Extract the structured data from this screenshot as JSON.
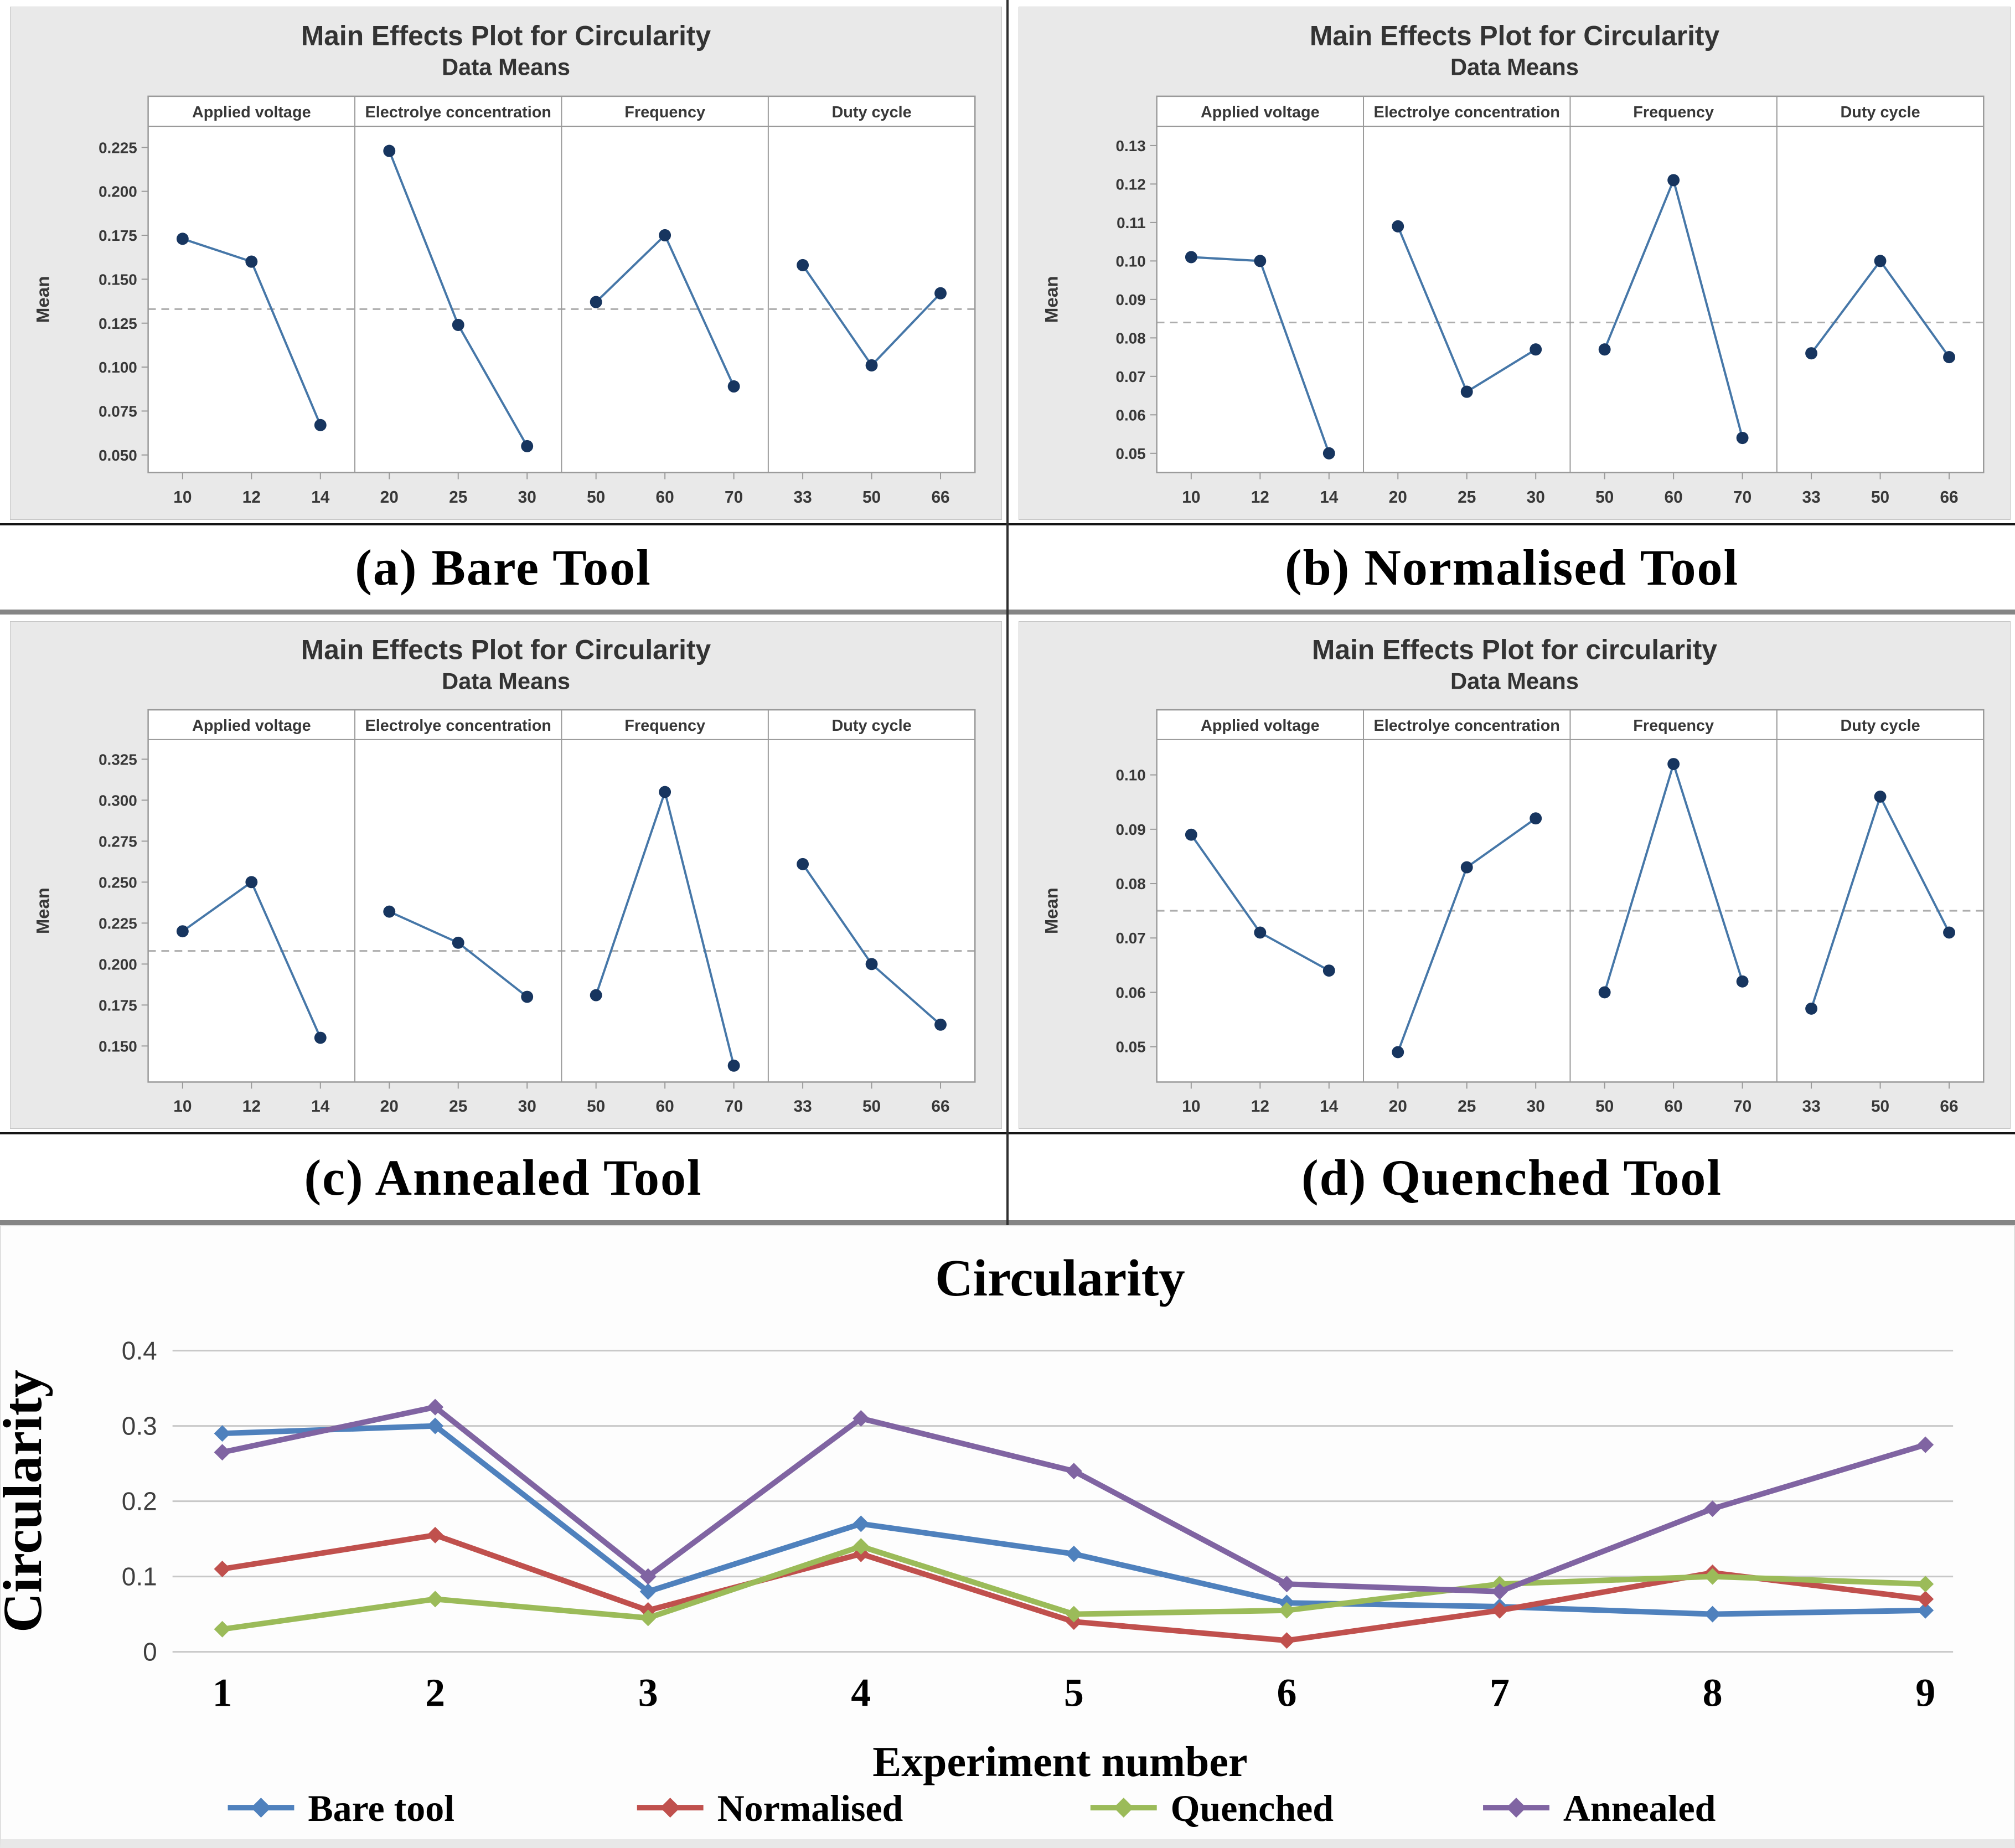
{
  "captions": {
    "a": "(a) Bare Tool",
    "b": "(b) Normalised Tool",
    "c": "(c) Annealed Tool",
    "d": "(d) Quenched Tool"
  },
  "colors": {
    "minitab_line": "#4677a8",
    "minitab_marker": "#17355f",
    "mean_dash": "#adadad",
    "panel_bg": "#e9e9e9",
    "frame": "#9a9a9a",
    "text_dark": "#383838",
    "grid": "#c8c8c8",
    "bare_tool": "#4f81bd",
    "normalised": "#c0504d",
    "quenched": "#9bbb59",
    "annealed": "#8064a2"
  },
  "chart_data": [
    {
      "id": "a",
      "type": "line",
      "variant": "main_effects",
      "title": "Main Effects Plot for Circularity",
      "subtitle": "Data Means",
      "ylabel": "Mean",
      "factors": [
        "Applied voltage",
        "Electrolye concentration",
        "Frequency",
        "Duty cycle"
      ],
      "categories": [
        [
          "10",
          "12",
          "14"
        ],
        [
          "20",
          "25",
          "30"
        ],
        [
          "50",
          "60",
          "70"
        ],
        [
          "33",
          "50",
          "66"
        ]
      ],
      "values": [
        [
          0.173,
          0.16,
          0.067
        ],
        [
          0.223,
          0.124,
          0.055
        ],
        [
          0.137,
          0.175,
          0.089
        ],
        [
          0.158,
          0.101,
          0.142
        ]
      ],
      "mean_line": 0.133,
      "yticks": [
        0.05,
        0.075,
        0.1,
        0.125,
        0.15,
        0.175,
        0.2,
        0.225
      ],
      "ytick_decimals": 3,
      "ylim": [
        0.04,
        0.237
      ],
      "grid": "none",
      "legend_position": "none"
    },
    {
      "id": "b",
      "type": "line",
      "variant": "main_effects",
      "title": "Main Effects Plot for Circularity",
      "subtitle": "Data Means",
      "ylabel": "Mean",
      "factors": [
        "Applied voltage",
        "Electrolye concentration",
        "Frequency",
        "Duty cycle"
      ],
      "categories": [
        [
          "10",
          "12",
          "14"
        ],
        [
          "20",
          "25",
          "30"
        ],
        [
          "50",
          "60",
          "70"
        ],
        [
          "33",
          "50",
          "66"
        ]
      ],
      "values": [
        [
          0.101,
          0.1,
          0.05
        ],
        [
          0.109,
          0.066,
          0.077
        ],
        [
          0.077,
          0.121,
          0.054
        ],
        [
          0.076,
          0.1,
          0.075
        ]
      ],
      "mean_line": 0.084,
      "yticks": [
        0.05,
        0.06,
        0.07,
        0.08,
        0.09,
        0.1,
        0.11,
        0.12,
        0.13
      ],
      "ytick_decimals": 2,
      "ylim": [
        0.045,
        0.135
      ],
      "grid": "none",
      "legend_position": "none"
    },
    {
      "id": "c",
      "type": "line",
      "variant": "main_effects",
      "title": "Main Effects Plot for Circularity",
      "subtitle": "Data Means",
      "ylabel": "Mean",
      "factors": [
        "Applied voltage",
        "Electrolye concentration",
        "Frequency",
        "Duty cycle"
      ],
      "categories": [
        [
          "10",
          "12",
          "14"
        ],
        [
          "20",
          "25",
          "30"
        ],
        [
          "50",
          "60",
          "70"
        ],
        [
          "33",
          "50",
          "66"
        ]
      ],
      "values": [
        [
          0.22,
          0.25,
          0.155
        ],
        [
          0.232,
          0.213,
          0.18
        ],
        [
          0.181,
          0.305,
          0.138
        ],
        [
          0.261,
          0.2,
          0.163
        ]
      ],
      "mean_line": 0.208,
      "yticks": [
        0.15,
        0.175,
        0.2,
        0.225,
        0.25,
        0.275,
        0.3,
        0.325
      ],
      "ytick_decimals": 3,
      "ylim": [
        0.128,
        0.337
      ],
      "grid": "none",
      "legend_position": "none"
    },
    {
      "id": "d",
      "type": "line",
      "variant": "main_effects",
      "title": "Main Effects Plot for circularity",
      "subtitle": "Data Means",
      "ylabel": "Mean",
      "factors": [
        "Applied voltage",
        "Electrolye concentration",
        "Frequency",
        "Duty cycle"
      ],
      "categories": [
        [
          "10",
          "12",
          "14"
        ],
        [
          "20",
          "25",
          "30"
        ],
        [
          "50",
          "60",
          "70"
        ],
        [
          "33",
          "50",
          "66"
        ]
      ],
      "values": [
        [
          0.089,
          0.071,
          0.064
        ],
        [
          0.049,
          0.083,
          0.092
        ],
        [
          0.06,
          0.102,
          0.062
        ],
        [
          0.057,
          0.096,
          0.071
        ]
      ],
      "mean_line": 0.075,
      "yticks": [
        0.05,
        0.06,
        0.07,
        0.08,
        0.09,
        0.1
      ],
      "ytick_decimals": 2,
      "ylim": [
        0.0435,
        0.1065
      ],
      "grid": "none",
      "legend_position": "none"
    },
    {
      "id": "comparison",
      "type": "line",
      "title": "Circularity",
      "xlabel": "Experiment number",
      "ylabel": "Circularity",
      "x": [
        "1",
        "2",
        "3",
        "4",
        "5",
        "6",
        "7",
        "8",
        "9"
      ],
      "series": [
        {
          "name": "Bare tool",
          "color": "#4f81bd",
          "values": [
            0.29,
            0.3,
            0.08,
            0.17,
            0.13,
            0.065,
            0.06,
            0.05,
            0.055
          ]
        },
        {
          "name": "Normalised",
          "color": "#c0504d",
          "values": [
            0.11,
            0.155,
            0.055,
            0.13,
            0.04,
            0.015,
            0.055,
            0.105,
            0.07
          ]
        },
        {
          "name": "Quenched",
          "color": "#9bbb59",
          "values": [
            0.03,
            0.07,
            0.045,
            0.14,
            0.05,
            0.055,
            0.09,
            0.1,
            0.09
          ]
        },
        {
          "name": "Annealed",
          "color": "#8064a2",
          "values": [
            0.265,
            0.325,
            0.1,
            0.31,
            0.24,
            0.09,
            0.08,
            0.19,
            0.275
          ]
        }
      ],
      "yticks": [
        0,
        0.1,
        0.2,
        0.3,
        0.4
      ],
      "ylim": [
        0,
        0.4
      ],
      "grid": "horizontal",
      "legend_position": "bottom"
    }
  ]
}
